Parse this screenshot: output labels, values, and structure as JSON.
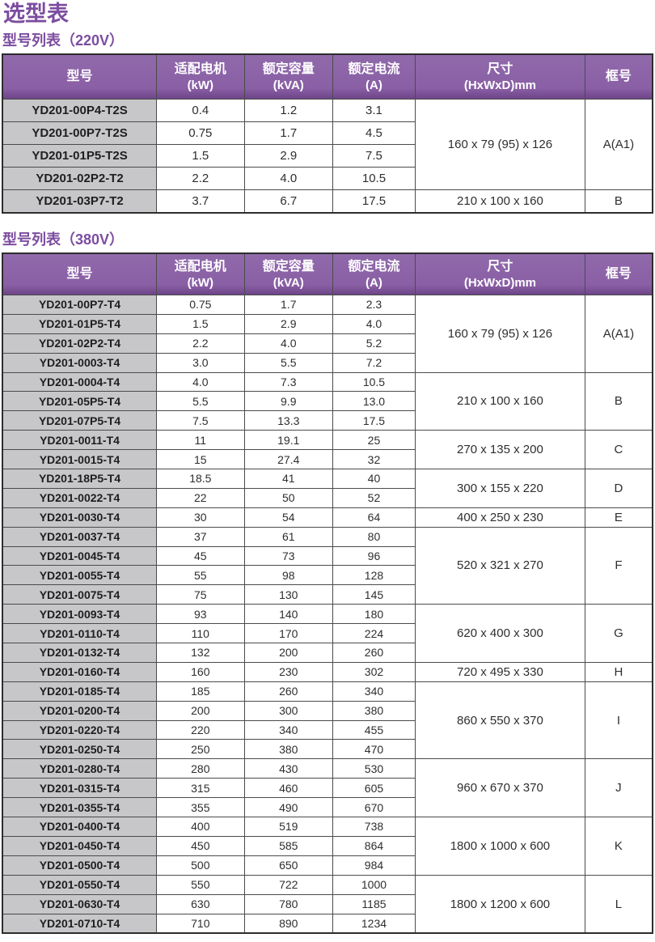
{
  "page": {
    "title": "选型表",
    "accent_color": "#7c4da0",
    "header_bg": "#8a5fa5",
    "model_column_bg": "#c7c6c8"
  },
  "tables": [
    {
      "subtitle": "型号列表（220V）",
      "columns": [
        {
          "key": "model",
          "label": "型号",
          "unit": ""
        },
        {
          "key": "kw",
          "label": "适配电机",
          "unit": "(kW)"
        },
        {
          "key": "kva",
          "label": "额定容量",
          "unit": "(kVA)"
        },
        {
          "key": "amp",
          "label": "额定电流",
          "unit": "(A)"
        },
        {
          "key": "dim",
          "label": "尺寸",
          "unit": "(HxWxD)mm"
        },
        {
          "key": "frame",
          "label": "框号",
          "unit": ""
        }
      ],
      "rows": [
        {
          "model": "YD201-00P4-T2S",
          "kw": "0.4",
          "kva": "1.2",
          "amp": "3.1"
        },
        {
          "model": "YD201-00P7-T2S",
          "kw": "0.75",
          "kva": "1.7",
          "amp": "4.5"
        },
        {
          "model": "YD201-01P5-T2S",
          "kw": "1.5",
          "kva": "2.9",
          "amp": "7.5"
        },
        {
          "model": "YD201-02P2-T2",
          "kw": "2.2",
          "kva": "4.0",
          "amp": "10.5"
        },
        {
          "model": "YD201-03P7-T2",
          "kw": "3.7",
          "kva": "6.7",
          "amp": "17.5"
        }
      ],
      "groups": [
        {
          "start": 0,
          "count": 4,
          "dim": "160 x 79 (95) x 126",
          "frame": "A(A1)"
        },
        {
          "start": 4,
          "count": 1,
          "dim": "210 x 100 x 160",
          "frame": "B"
        }
      ]
    },
    {
      "subtitle": "型号列表（380V）",
      "columns": [
        {
          "key": "model",
          "label": "型号",
          "unit": ""
        },
        {
          "key": "kw",
          "label": "适配电机",
          "unit": "(kW)"
        },
        {
          "key": "kva",
          "label": "额定容量",
          "unit": "(kVA)"
        },
        {
          "key": "amp",
          "label": "额定电流",
          "unit": "(A)"
        },
        {
          "key": "dim",
          "label": "尺寸",
          "unit": "(HxWxD)mm"
        },
        {
          "key": "frame",
          "label": "框号",
          "unit": ""
        }
      ],
      "rows": [
        {
          "model": "YD201-00P7-T4",
          "kw": "0.75",
          "kva": "1.7",
          "amp": "2.3"
        },
        {
          "model": "YD201-01P5-T4",
          "kw": "1.5",
          "kva": "2.9",
          "amp": "4.0"
        },
        {
          "model": "YD201-02P2-T4",
          "kw": "2.2",
          "kva": "4.0",
          "amp": "5.2"
        },
        {
          "model": "YD201-0003-T4",
          "kw": "3.0",
          "kva": "5.5",
          "amp": "7.2"
        },
        {
          "model": "YD201-0004-T4",
          "kw": "4.0",
          "kva": "7.3",
          "amp": "10.5"
        },
        {
          "model": "YD201-05P5-T4",
          "kw": "5.5",
          "kva": "9.9",
          "amp": "13.0"
        },
        {
          "model": "YD201-07P5-T4",
          "kw": "7.5",
          "kva": "13.3",
          "amp": "17.5"
        },
        {
          "model": "YD201-0011-T4",
          "kw": "11",
          "kva": "19.1",
          "amp": "25"
        },
        {
          "model": "YD201-0015-T4",
          "kw": "15",
          "kva": "27.4",
          "amp": "32"
        },
        {
          "model": "YD201-18P5-T4",
          "kw": "18.5",
          "kva": "41",
          "amp": "40"
        },
        {
          "model": "YD201-0022-T4",
          "kw": "22",
          "kva": "50",
          "amp": "52"
        },
        {
          "model": "YD201-0030-T4",
          "kw": "30",
          "kva": "54",
          "amp": "64"
        },
        {
          "model": "YD201-0037-T4",
          "kw": "37",
          "kva": "61",
          "amp": "80"
        },
        {
          "model": "YD201-0045-T4",
          "kw": "45",
          "kva": "73",
          "amp": "96"
        },
        {
          "model": "YD201-0055-T4",
          "kw": "55",
          "kva": "98",
          "amp": "128"
        },
        {
          "model": "YD201-0075-T4",
          "kw": "75",
          "kva": "130",
          "amp": "145"
        },
        {
          "model": "YD201-0093-T4",
          "kw": "93",
          "kva": "140",
          "amp": "180"
        },
        {
          "model": "YD201-0110-T4",
          "kw": "110",
          "kva": "170",
          "amp": "224"
        },
        {
          "model": "YD201-0132-T4",
          "kw": "132",
          "kva": "200",
          "amp": "260"
        },
        {
          "model": "YD201-0160-T4",
          "kw": "160",
          "kva": "230",
          "amp": "302"
        },
        {
          "model": "YD201-0185-T4",
          "kw": "185",
          "kva": "260",
          "amp": "340"
        },
        {
          "model": "YD201-0200-T4",
          "kw": "200",
          "kva": "300",
          "amp": "380"
        },
        {
          "model": "YD201-0220-T4",
          "kw": "220",
          "kva": "340",
          "amp": "455"
        },
        {
          "model": "YD201-0250-T4",
          "kw": "250",
          "kva": "380",
          "amp": "470"
        },
        {
          "model": "YD201-0280-T4",
          "kw": "280",
          "kva": "430",
          "amp": "530"
        },
        {
          "model": "YD201-0315-T4",
          "kw": "315",
          "kva": "460",
          "amp": "605"
        },
        {
          "model": "YD201-0355-T4",
          "kw": "355",
          "kva": "490",
          "amp": "670"
        },
        {
          "model": "YD201-0400-T4",
          "kw": "400",
          "kva": "519",
          "amp": "738"
        },
        {
          "model": "YD201-0450-T4",
          "kw": "450",
          "kva": "585",
          "amp": "864"
        },
        {
          "model": "YD201-0500-T4",
          "kw": "500",
          "kva": "650",
          "amp": "984"
        },
        {
          "model": "YD201-0550-T4",
          "kw": "550",
          "kva": "722",
          "amp": "1000"
        },
        {
          "model": "YD201-0630-T4",
          "kw": "630",
          "kva": "780",
          "amp": "1185"
        },
        {
          "model": "YD201-0710-T4",
          "kw": "710",
          "kva": "890",
          "amp": "1234"
        }
      ],
      "groups": [
        {
          "start": 0,
          "count": 4,
          "dim": "160 x 79 (95) x 126",
          "frame": "A(A1)"
        },
        {
          "start": 4,
          "count": 3,
          "dim": "210 x 100 x 160",
          "frame": "B"
        },
        {
          "start": 7,
          "count": 2,
          "dim": "270 x 135 x 200",
          "frame": "C"
        },
        {
          "start": 9,
          "count": 2,
          "dim": "300 x 155 x 220",
          "frame": "D"
        },
        {
          "start": 11,
          "count": 1,
          "dim": "400 x 250 x 230",
          "frame": "E"
        },
        {
          "start": 12,
          "count": 4,
          "dim": "520 x 321 x 270",
          "frame": "F"
        },
        {
          "start": 16,
          "count": 3,
          "dim": "620 x 400 x 300",
          "frame": "G"
        },
        {
          "start": 19,
          "count": 1,
          "dim": "720 x 495 x 330",
          "frame": "H"
        },
        {
          "start": 20,
          "count": 4,
          "dim": "860 x 550 x 370",
          "frame": "I"
        },
        {
          "start": 24,
          "count": 3,
          "dim": "960 x 670 x 370",
          "frame": "J"
        },
        {
          "start": 27,
          "count": 3,
          "dim": "1800 x 1000 x 600",
          "frame": "K"
        },
        {
          "start": 30,
          "count": 3,
          "dim": "1800 x 1200 x 600",
          "frame": "L"
        }
      ]
    }
  ]
}
